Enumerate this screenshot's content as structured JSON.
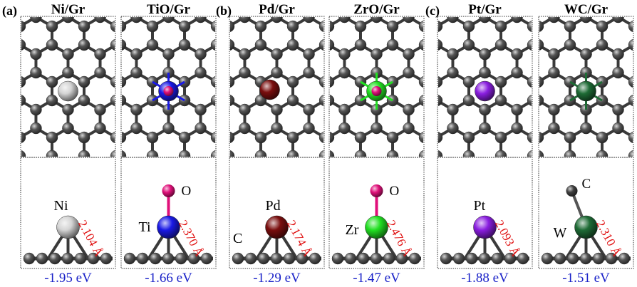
{
  "groups": [
    {
      "letter": "(a)"
    },
    {
      "letter": "(b)"
    },
    {
      "letter": "(c)"
    }
  ],
  "panels": [
    {
      "title": "Ni/Gr",
      "metal": "Ni",
      "ligand": "",
      "bond": "2.104 Å",
      "energy": "-1.95 eV",
      "metal_color": "#d4d4d4",
      "center_color": "",
      "ligand_color": ""
    },
    {
      "title": "TiO/Gr",
      "metal": "Ti",
      "ligand": "O",
      "bond": "2.370 Å",
      "energy": "-1.66 eV",
      "metal_color": "#1a1ae6",
      "center_color": "#e0107a",
      "ligand_color": "#e0107a"
    },
    {
      "title": "Pd/Gr",
      "metal": "Pd",
      "ligand": "",
      "bond": "2.174 Å",
      "energy": "-1.29 eV",
      "metal_color": "#7a0e0e",
      "center_color": "",
      "ligand_color": ""
    },
    {
      "title": "ZrO/Gr",
      "metal": "Zr",
      "ligand": "O",
      "bond": "2.476 Å",
      "energy": "-1.47 eV",
      "metal_color": "#22e022",
      "center_color": "#e0107a",
      "ligand_color": "#e0107a"
    },
    {
      "title": "Pt/Gr",
      "metal": "Pt",
      "ligand": "",
      "bond": "2.093 Å",
      "energy": "-1.88 eV",
      "metal_color": "#8a1ee0",
      "center_color": "",
      "ligand_color": ""
    },
    {
      "title": "WC/Gr",
      "metal": "W",
      "ligand": "C",
      "bond": "2.310 Å",
      "energy": "-1.51 eV",
      "metal_color": "#1e6b35",
      "center_color": "",
      "ligand_color": "#404040"
    }
  ],
  "substrate_label": "C",
  "colors": {
    "carbon": "#555555",
    "bond_label": "#e01010",
    "energy": "#1a22c8",
    "frame": "#333333"
  }
}
